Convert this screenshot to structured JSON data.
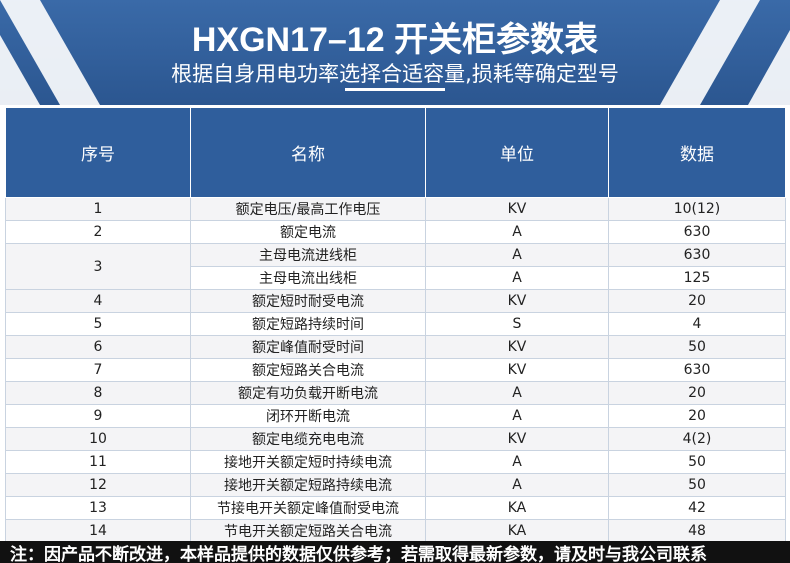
{
  "header": {
    "title": "HXGN17–12 开关柜参数表",
    "subtitle": "根据自身用电功率选择合适容量,损耗等确定型号"
  },
  "table": {
    "columns": [
      "序号",
      "名称",
      "单位",
      "数据"
    ],
    "rows": [
      {
        "no": "1",
        "items": [
          {
            "name": "额定电压/最高工作电压",
            "unit": "KV",
            "value": "10(12)"
          }
        ]
      },
      {
        "no": "2",
        "items": [
          {
            "name": "额定电流",
            "unit": "A",
            "value": "630"
          }
        ]
      },
      {
        "no": "3",
        "items": [
          {
            "name": "主母电流进线柜",
            "unit": "A",
            "value": "630"
          },
          {
            "name": "主母电流出线柜",
            "unit": "A",
            "value": "125"
          }
        ]
      },
      {
        "no": "4",
        "items": [
          {
            "name": "额定短时耐受电流",
            "unit": "KV",
            "value": "20"
          }
        ]
      },
      {
        "no": "5",
        "items": [
          {
            "name": "额定短路持续时间",
            "unit": "S",
            "value": "4"
          }
        ]
      },
      {
        "no": "6",
        "items": [
          {
            "name": "额定峰值耐受时间",
            "unit": "KV",
            "value": "50"
          }
        ]
      },
      {
        "no": "7",
        "items": [
          {
            "name": "额定短路关合电流",
            "unit": "KV",
            "value": "630"
          }
        ]
      },
      {
        "no": "8",
        "items": [
          {
            "name": "额定有功负载开断电流",
            "unit": "A",
            "value": "20"
          }
        ]
      },
      {
        "no": "9",
        "items": [
          {
            "name": "闭环开断电流",
            "unit": "A",
            "value": "20"
          }
        ]
      },
      {
        "no": "10",
        "items": [
          {
            "name": "额定电缆充电电流",
            "unit": "KV",
            "value": "4(2)"
          }
        ]
      },
      {
        "no": "11",
        "items": [
          {
            "name": "接地开关额定短时持续电流",
            "unit": "A",
            "value": "50"
          }
        ]
      },
      {
        "no": "12",
        "items": [
          {
            "name": "接地开关额定短路持续电流",
            "unit": "A",
            "value": "50"
          }
        ]
      },
      {
        "no": "13",
        "items": [
          {
            "name": "节接电开关额定峰值耐受电流",
            "unit": "KA",
            "value": "42"
          }
        ]
      },
      {
        "no": "14",
        "items": [
          {
            "name": "节电开关额定短路关合电流",
            "unit": "KA",
            "value": "48"
          }
        ]
      }
    ]
  },
  "footer": {
    "note": "注：因产品不断改进，本样品提供的数据仅供参考；若需取得最新参数，请及时与我公司联系"
  }
}
